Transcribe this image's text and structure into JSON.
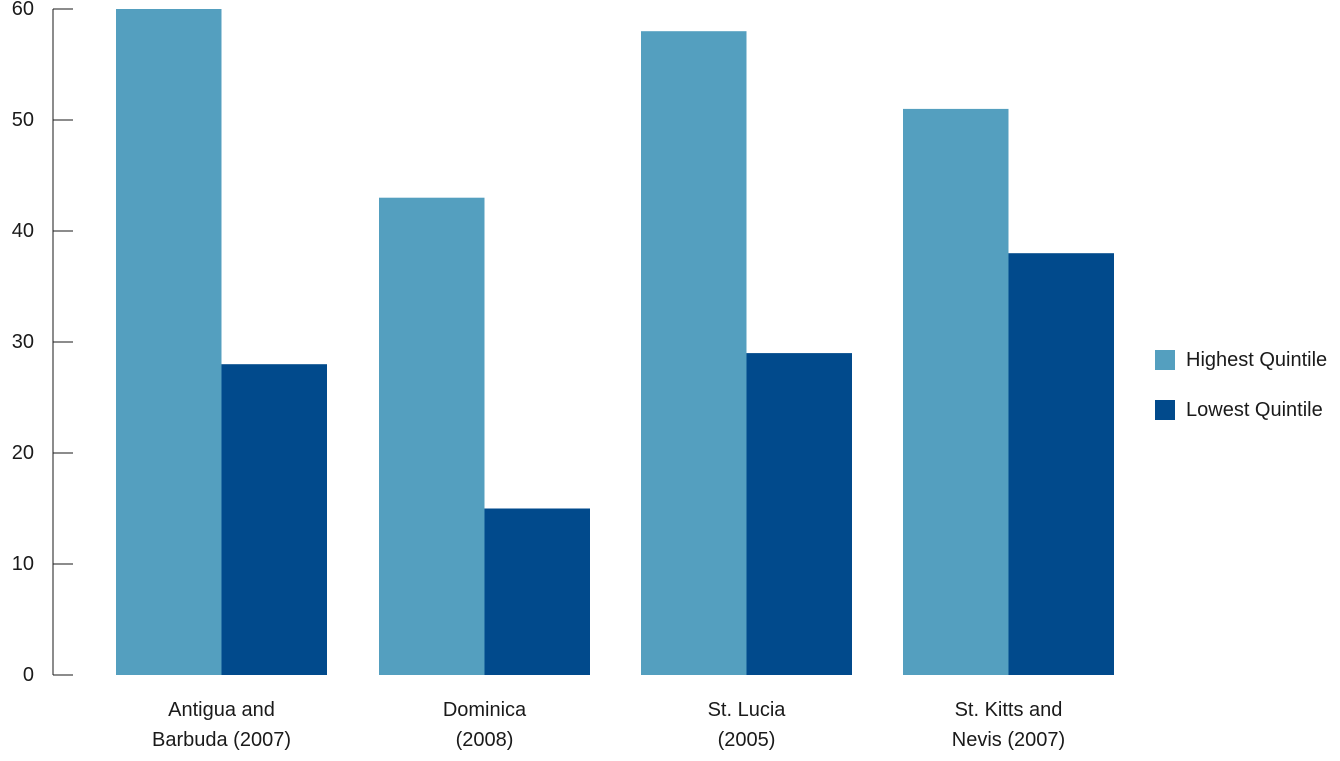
{
  "chart_data": {
    "type": "bar",
    "categories": [
      [
        "Antigua and",
        "Barbuda (2007)"
      ],
      [
        "Dominica",
        "(2008)"
      ],
      [
        "St. Lucia",
        "(2005)"
      ],
      [
        "St. Kitts and",
        "Nevis (2007)"
      ]
    ],
    "series": [
      {
        "name": "Highest Quintile",
        "color": "#549fbf",
        "values": [
          60,
          43,
          58,
          51
        ]
      },
      {
        "name": "Lowest Quintile",
        "color": "#014a8c",
        "values": [
          28,
          15,
          29,
          38
        ]
      }
    ],
    "ylim": [
      0,
      60
    ],
    "yticks": [
      0,
      10,
      20,
      30,
      40,
      50,
      60
    ],
    "grid": false,
    "legend_position": "right"
  }
}
